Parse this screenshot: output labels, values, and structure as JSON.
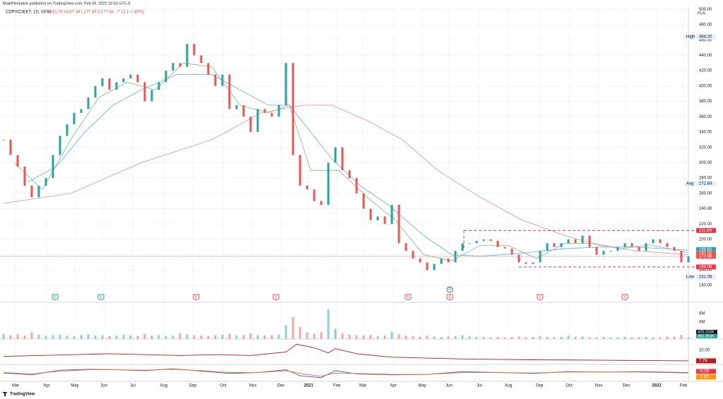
{
  "header": {
    "byline": "MojePieniadze published on TradingView.com, Feb 05, 2022 10:03 UTC-5",
    "symbol": "CDPROJEKT, 1D, GPW",
    "ohlc": "O181.00 H187.34 L177.88 C177.88 −7.12 (−3.85%)",
    "unit": "PLN",
    "logo": "TradingView"
  },
  "chart_data": {
    "type": "bar",
    "xlim": [
      0,
      97
    ],
    "ylim": [
      118,
      503
    ],
    "yticks": [
      {
        "value": 140,
        "label": "140.00"
      },
      {
        "value": 160,
        "label": "160.00"
      },
      {
        "value": 180,
        "label": "180.00"
      },
      {
        "value": 200,
        "label": "200.00"
      },
      {
        "value": 220,
        "label": "220.00"
      },
      {
        "value": 240,
        "label": "240.00"
      },
      {
        "value": 260,
        "label": "260.00"
      },
      {
        "value": 280,
        "label": "280.00"
      },
      {
        "value": 300,
        "label": "300.00"
      },
      {
        "value": 320,
        "label": "320.00"
      },
      {
        "value": 340,
        "label": "340.00"
      },
      {
        "value": 360,
        "label": "360.00"
      },
      {
        "value": 380,
        "label": "380.00"
      },
      {
        "value": 400,
        "label": "400.00"
      },
      {
        "value": 420,
        "label": "420.00"
      },
      {
        "value": 440,
        "label": "440.00"
      },
      {
        "value": 460,
        "label": "460.00"
      },
      {
        "value": 480,
        "label": "480.00"
      },
      {
        "value": 500,
        "label": "500.00"
      }
    ],
    "xticks": [
      {
        "value": 1.7,
        "label": "Mar"
      },
      {
        "value": 6.1,
        "label": "Apr"
      },
      {
        "value": 10.1,
        "label": "May"
      },
      {
        "value": 14.2,
        "label": "Jun"
      },
      {
        "value": 18.3,
        "label": "Jul"
      },
      {
        "value": 22.7,
        "label": "Aug"
      },
      {
        "value": 26.8,
        "label": "Sep"
      },
      {
        "value": 31.1,
        "label": "Oct"
      },
      {
        "value": 35.3,
        "label": "Nov"
      },
      {
        "value": 39.3,
        "label": "Dec"
      },
      {
        "value": 43.2,
        "label": "2021"
      },
      {
        "value": 47.2,
        "label": "Feb"
      },
      {
        "value": 50.9,
        "label": "Mar"
      },
      {
        "value": 55.2,
        "label": "Apr"
      },
      {
        "value": 59.3,
        "label": "May"
      },
      {
        "value": 63.1,
        "label": "Jun"
      },
      {
        "value": 67.4,
        "label": "Jul"
      },
      {
        "value": 71.5,
        "label": "Aug"
      },
      {
        "value": 75.9,
        "label": "Sep"
      },
      {
        "value": 80.1,
        "label": "Oct"
      },
      {
        "value": 84.3,
        "label": "Nov"
      },
      {
        "value": 88.2,
        "label": "Dec"
      },
      {
        "value": 92.5,
        "label": "2022"
      },
      {
        "value": 96.3,
        "label": "Feb"
      }
    ],
    "up_color": "#26a69a",
    "down_color": "#ef5350",
    "close": [
      330,
      310,
      295,
      270,
      255,
      270,
      280,
      310,
      335,
      350,
      365,
      370,
      385,
      400,
      410,
      395,
      405,
      410,
      415,
      405,
      380,
      395,
      405,
      420,
      430,
      425,
      455,
      440,
      430,
      415,
      400,
      415,
      370,
      375,
      360,
      340,
      370,
      365,
      360,
      375,
      430,
      310,
      270,
      265,
      250,
      245,
      300,
      320,
      290,
      280,
      260,
      240,
      225,
      230,
      220,
      245,
      195,
      185,
      175,
      170,
      160,
      168,
      175,
      170,
      185,
      195,
      195,
      198,
      200,
      198,
      190,
      188,
      180,
      170,
      168,
      170,
      185,
      195,
      190,
      195,
      200,
      195,
      205,
      190,
      180,
      185,
      185,
      190,
      195,
      190,
      185,
      195,
      200,
      195,
      190,
      185,
      170,
      178
    ],
    "series": [
      {
        "color": "#81c784",
        "x": [
          1.5,
          5.5,
          9.5,
          13.5,
          17.5,
          21.5,
          25.5,
          29.5,
          33.5,
          37.5,
          40.5,
          43.5,
          47.5,
          51.5,
          55.5,
          59.5,
          63.5,
          67.5,
          71.5,
          75.5,
          79.5,
          83.5,
          87.5,
          91.5,
          97
        ],
        "values": [
          300,
          265,
          330,
          385,
          405,
          395,
          430,
          425,
          375,
          365,
          375,
          290,
          290,
          255,
          225,
          180,
          172,
          192,
          192,
          175,
          195,
          195,
          188,
          193,
          183
        ]
      },
      {
        "color": "#64b5f6",
        "x": [
          3.5,
          7.5,
          11.5,
          15.5,
          19.5,
          24.5,
          29.5,
          33.5,
          37.5,
          40.5,
          43.5,
          46.5,
          50.5,
          54.5,
          59.5,
          63.5,
          67.5,
          73.5,
          79.5,
          84.5,
          89.5,
          97
        ],
        "values": [
          275,
          295,
          340,
          375,
          395,
          415,
          415,
          395,
          375,
          375,
          340,
          305,
          270,
          245,
          205,
          180,
          178,
          182,
          188,
          190,
          190,
          186
        ]
      },
      {
        "color": "#ef9a9a",
        "x": [
          0,
          9.5,
          19.5,
          29.5,
          36.5,
          42.5,
          46.5,
          51.5,
          56.5,
          61.5,
          67.5,
          73.5,
          79.5,
          84.5,
          89.5,
          97
        ],
        "values": [
          247,
          260,
          300,
          330,
          365,
          375,
          375,
          355,
          330,
          290,
          255,
          225,
          205,
          192,
          185,
          180
        ]
      }
    ],
    "levels": [
      {
        "value": 211.64,
        "from": 65.2,
        "color": "#f23645"
      },
      {
        "value": 164.08,
        "from": 73,
        "color": "#f23645"
      }
    ],
    "price_labels": [
      {
        "value": 464.2,
        "label": "464.20",
        "tag": "High",
        "bg": "#e3effd",
        "fg": "#131722"
      },
      {
        "value": 272.84,
        "label": "272.84",
        "tag": "Avg",
        "bg": "#e3effd",
        "fg": "#131722"
      },
      {
        "value": 211.64,
        "label": "211.64",
        "bg": "#f23645",
        "fg": "#fff"
      },
      {
        "value": 186.6,
        "label": "186.60",
        "bg": "#2196f3",
        "fg": "#fff"
      },
      {
        "value": 183.08,
        "label": "183.08",
        "bg": "#4caf50",
        "fg": "#fff"
      },
      {
        "value": 181.06,
        "label": "181.06",
        "bg": "#ef5350",
        "fg": "#fff"
      },
      {
        "value": 177.88,
        "label": "177.88",
        "bg": "#ef5350",
        "fg": "#fff"
      },
      {
        "value": 164.08,
        "label": "164.08",
        "bg": "#f23645",
        "fg": "#fff"
      },
      {
        "value": 151.08,
        "label": "151.08",
        "tag": "Low",
        "bg": "#e3effd",
        "fg": "#131722"
      }
    ],
    "events": [
      {
        "x": 7.3,
        "label": "E",
        "color": "#26a69a"
      },
      {
        "x": 13.8,
        "label": "E",
        "color": "#26a69a"
      },
      {
        "x": 27.3,
        "label": "E",
        "color": "#ef5350"
      },
      {
        "x": 38.6,
        "label": "E",
        "color": "#ef5350"
      },
      {
        "x": 57.3,
        "label": "E",
        "color": "#ef5350"
      },
      {
        "x": 63.2,
        "label": "E",
        "color": "#ef5350"
      },
      {
        "x": 76,
        "label": "E",
        "color": "#ef5350"
      },
      {
        "x": 88,
        "label": "E",
        "color": "#ef5350"
      },
      {
        "x": 63.2,
        "label": "D",
        "color": "#2962ff"
      }
    ],
    "volume": {
      "ylim": [
        0,
        8
      ],
      "yticks": [
        {
          "value": 6,
          "label": "6M"
        },
        {
          "value": 4,
          "label": "4M"
        }
      ],
      "labels": [
        "428.232K",
        "360.363K"
      ],
      "values": [
        1.2,
        0.9,
        1.1,
        0.8,
        1.6,
        1.0,
        0.8,
        0.9,
        1.0,
        0.8,
        0.7,
        0.9,
        1.1,
        0.8,
        0.9,
        0.7,
        0.8,
        1.0,
        0.9,
        0.7,
        1.2,
        0.8,
        0.9,
        0.7,
        0.8,
        1.4,
        1.1,
        0.9,
        0.8,
        0.7,
        0.9,
        1.0,
        1.2,
        0.8,
        0.9,
        1.3,
        0.9,
        0.8,
        0.9,
        1.0,
        3.2,
        5.2,
        2.8,
        1.5,
        1.2,
        1.6,
        7.0,
        2.4,
        1.3,
        1.0,
        0.9,
        0.8,
        0.9,
        0.7,
        0.8,
        1.7,
        1.1,
        0.8,
        0.7,
        0.6,
        0.8,
        0.6,
        0.5,
        0.6,
        0.7,
        0.9,
        0.6,
        0.5,
        0.5,
        0.4,
        0.5,
        0.4,
        0.5,
        0.6,
        0.4,
        0.5,
        0.7,
        0.5,
        0.4,
        0.5,
        0.8,
        0.5,
        0.6,
        0.4,
        0.4,
        0.5,
        0.4,
        0.4,
        0.5,
        0.4,
        0.4,
        0.5,
        0.4,
        0.4,
        0.6,
        0.5,
        0.9,
        0.4
      ]
    },
    "ind1": {
      "ylim": [
        4.5,
        31.5
      ],
      "ticks": [
        {
          "value": 20,
          "label": "20.00"
        }
      ],
      "current": {
        "value": 7.79,
        "label": "7.79"
      },
      "color": "#b71c1c",
      "x": [
        0,
        5,
        10,
        15,
        20,
        25,
        30,
        35,
        40,
        41.5,
        44,
        46,
        47,
        50,
        55,
        60,
        65,
        70,
        75,
        80,
        85,
        90,
        97
      ],
      "values": [
        13,
        14,
        15,
        16,
        15,
        14,
        15,
        14,
        18,
        27,
        23,
        17,
        22,
        16,
        12,
        11,
        10,
        9.5,
        9,
        8.8,
        8.5,
        8.2,
        7.79
      ]
    },
    "ind2": {
      "ylim": [
        -20,
        15
      ],
      "labels": [
        {
          "value": -0.09,
          "label": "-0.09",
          "bg": "#f23645"
        },
        {
          "value": -2.62,
          "label": "-2.62",
          "bg": "#ff9800"
        }
      ],
      "series": [
        {
          "color": "#2962ff",
          "x": [
            0,
            4,
            8,
            12,
            16,
            20,
            24,
            28,
            32,
            36,
            40,
            42,
            45,
            47,
            50,
            55,
            60,
            65,
            70,
            75,
            80,
            85,
            90,
            97
          ],
          "values": [
            -2,
            -6,
            4,
            6,
            5,
            3,
            7,
            2,
            -3,
            -1,
            5,
            -8,
            -12,
            3,
            -4,
            -6,
            -5,
            1,
            -1,
            -3,
            1,
            0,
            1,
            -1
          ]
        },
        {
          "color": "#ff6d00",
          "x": [
            0,
            4,
            8,
            12,
            16,
            20,
            24,
            28,
            32,
            36,
            40,
            42,
            45,
            47,
            50,
            55,
            60,
            65,
            70,
            75,
            80,
            85,
            90,
            97
          ],
          "values": [
            -1,
            -4,
            2,
            5,
            5,
            4,
            6,
            3,
            -1,
            -1,
            3,
            -3,
            -9,
            -2,
            -3,
            -5,
            -5,
            -1,
            -1,
            -2,
            0,
            0,
            0,
            -2
          ]
        }
      ]
    }
  }
}
